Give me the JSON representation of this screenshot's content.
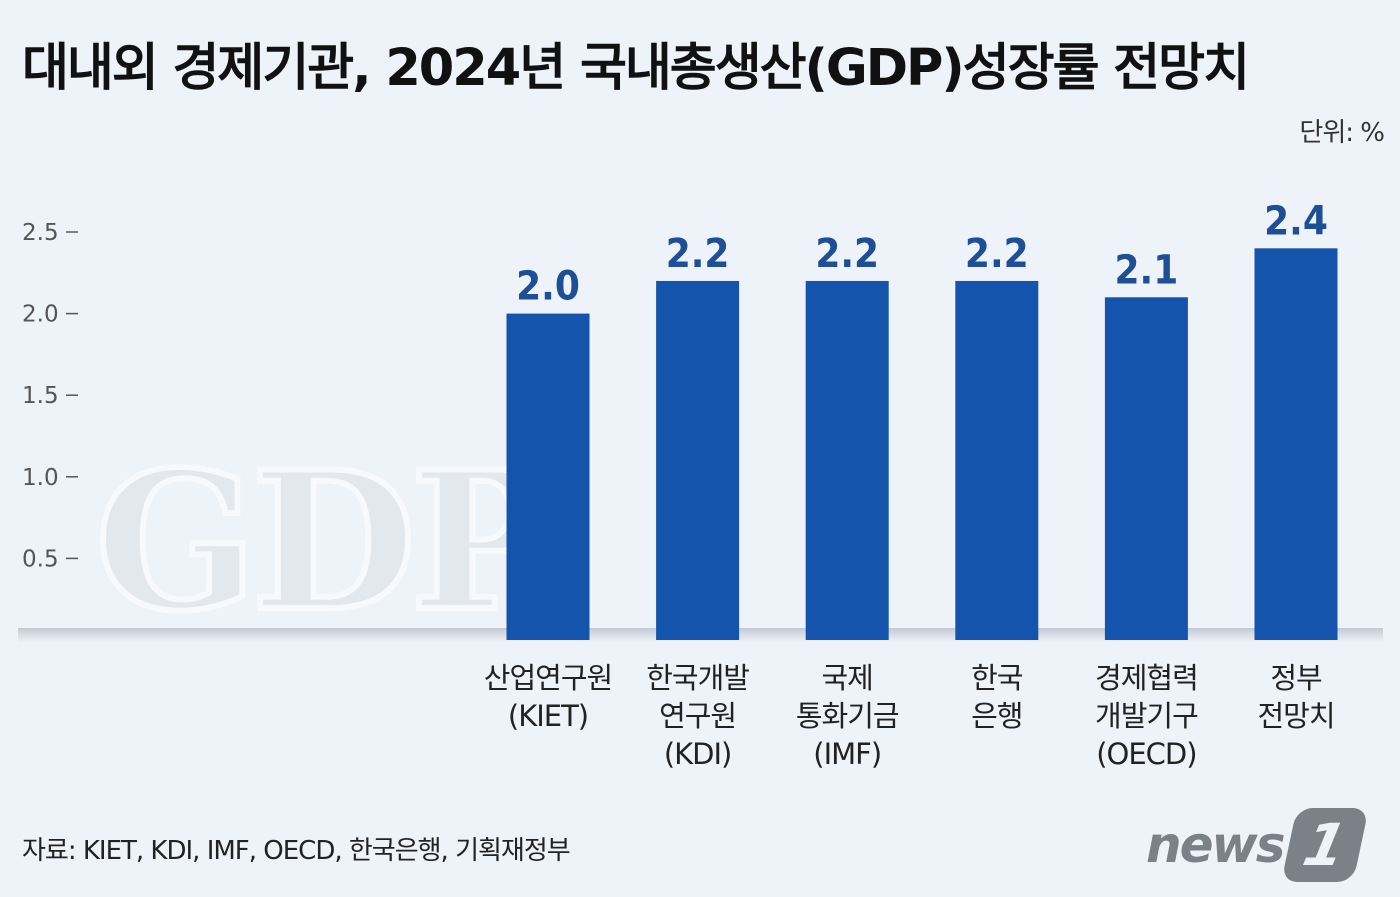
{
  "title": "대내외 경제기관, 2024년 국내총생산(GDP)성장률 전망치",
  "unit_label": "단위: %",
  "watermark": "GDP",
  "source": "자료: KIET, KDI, IMF, OECD, 한국은행, 기획재정부",
  "logo": {
    "text": "news",
    "mark": "1"
  },
  "colors": {
    "bar": "#1554ad",
    "value_label": "#1e4f96",
    "background": "#eef2f9",
    "axis_text": "#555555"
  },
  "chart_data": {
    "type": "bar",
    "categories": [
      [
        "산업연구원",
        "(KIET)"
      ],
      [
        "한국개발",
        "연구원",
        "(KDI)"
      ],
      [
        "국제",
        "통화기금",
        "(IMF)"
      ],
      [
        "한국",
        "은행"
      ],
      [
        "경제협력",
        "개발기구",
        "(OECD)"
      ],
      [
        "정부",
        "전망치"
      ]
    ],
    "values": [
      2.0,
      2.2,
      2.2,
      2.2,
      2.1,
      2.4
    ],
    "value_labels": [
      "2.0",
      "2.2",
      "2.2",
      "2.2",
      "2.1",
      "2.4"
    ],
    "yticks": [
      "2.5",
      "2.0",
      "1.5",
      "1.0",
      "0.5"
    ],
    "ytick_values": [
      2.5,
      2.0,
      1.5,
      1.0,
      0.5
    ],
    "ylim": [
      0,
      2.5
    ],
    "grid": false
  }
}
